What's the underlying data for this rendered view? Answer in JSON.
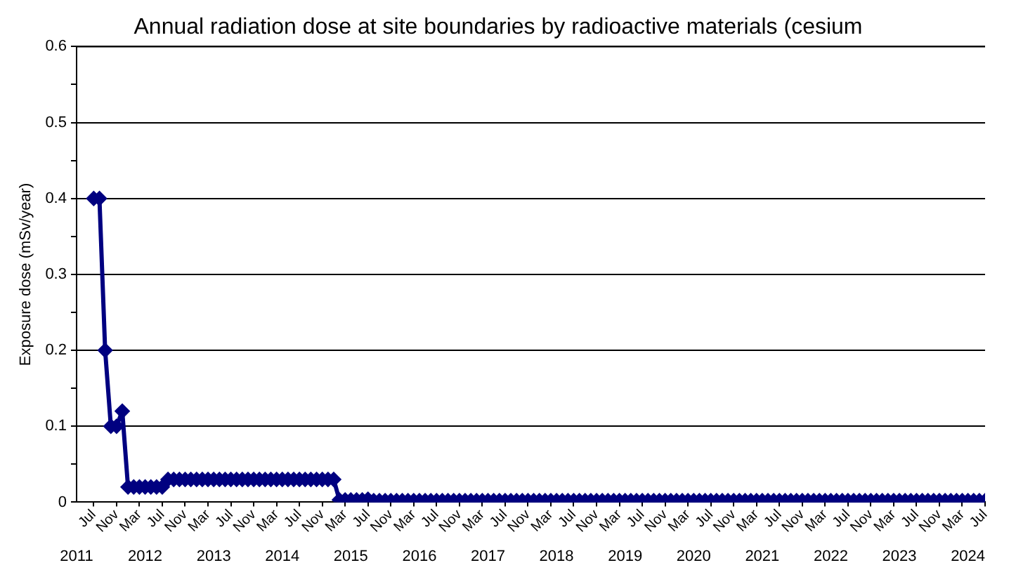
{
  "chart_data": {
    "type": "line",
    "title": "Annual radiation dose at site boundaries by radioactive materials (cesium",
    "ylabel": "Exposure dose (mSv/year)",
    "x": [
      "2011-07",
      "2011-08",
      "2011-09",
      "2011-10",
      "2011-11",
      "2011-12",
      "2012-01",
      "2012-02",
      "2012-03",
      "2012-04",
      "2012-05",
      "2012-06",
      "2012-07",
      "2012-08",
      "2012-09",
      "2012-10",
      "2012-11",
      "2012-12",
      "2013-01",
      "2013-02",
      "2013-03",
      "2013-04",
      "2013-05",
      "2013-06",
      "2013-07",
      "2013-08",
      "2013-09",
      "2013-10",
      "2013-11",
      "2013-12",
      "2014-01",
      "2014-02",
      "2014-03",
      "2014-04",
      "2014-05",
      "2014-06",
      "2014-07",
      "2014-08",
      "2014-09",
      "2014-10",
      "2014-11",
      "2014-12",
      "2015-01",
      "2015-02",
      "2015-03",
      "2015-04",
      "2015-05",
      "2015-06",
      "2015-07",
      "2015-08",
      "2015-09",
      "2015-10",
      "2015-11",
      "2015-12",
      "2016-01",
      "2016-02",
      "2016-03",
      "2016-04",
      "2016-05",
      "2016-06",
      "2016-07",
      "2016-08",
      "2016-09",
      "2016-10",
      "2016-11",
      "2016-12",
      "2017-01",
      "2017-02",
      "2017-03",
      "2017-04",
      "2017-05",
      "2017-06",
      "2017-07",
      "2017-08",
      "2017-09",
      "2017-10",
      "2017-11",
      "2017-12",
      "2018-01",
      "2018-02",
      "2018-03",
      "2018-04",
      "2018-05",
      "2018-06",
      "2018-07",
      "2018-08",
      "2018-09",
      "2018-10",
      "2018-11",
      "2018-12",
      "2019-01",
      "2019-02",
      "2019-03",
      "2019-04",
      "2019-05",
      "2019-06",
      "2019-07",
      "2019-08",
      "2019-09",
      "2019-10",
      "2019-11",
      "2019-12",
      "2020-01",
      "2020-02",
      "2020-03",
      "2020-04",
      "2020-05",
      "2020-06",
      "2020-07",
      "2020-08",
      "2020-09",
      "2020-10",
      "2020-11",
      "2020-12",
      "2021-01",
      "2021-02",
      "2021-03",
      "2021-04",
      "2021-05",
      "2021-06",
      "2021-07",
      "2021-08",
      "2021-09",
      "2021-10",
      "2021-11",
      "2021-12",
      "2022-01",
      "2022-02",
      "2022-03",
      "2022-04",
      "2022-05",
      "2022-06",
      "2022-07",
      "2022-08",
      "2022-09",
      "2022-10",
      "2022-11",
      "2022-12",
      "2023-01",
      "2023-02",
      "2023-03",
      "2023-04",
      "2023-05",
      "2023-06",
      "2023-07",
      "2023-08",
      "2023-09",
      "2023-10",
      "2023-11",
      "2023-12",
      "2024-01",
      "2024-02",
      "2024-03",
      "2024-04",
      "2024-05",
      "2024-06",
      "2024-07"
    ],
    "series": [
      {
        "color": "#000080",
        "values": [
          0.4,
          0.4,
          0.2,
          0.1,
          0.1,
          0.12,
          0.02,
          0.02,
          0.02,
          0.02,
          0.02,
          0.02,
          0.02,
          0.03,
          0.03,
          0.03,
          0.03,
          0.03,
          0.03,
          0.03,
          0.03,
          0.03,
          0.03,
          0.03,
          0.03,
          0.03,
          0.03,
          0.03,
          0.03,
          0.03,
          0.03,
          0.03,
          0.03,
          0.03,
          0.03,
          0.03,
          0.03,
          0.03,
          0.03,
          0.03,
          0.03,
          0.03,
          0.03,
          0.003,
          0.003,
          0.003,
          0.003,
          0.003,
          0.004,
          0.002,
          0.002,
          0.002,
          0.002,
          0.002,
          0.002,
          0.002,
          0.002,
          0.002,
          0.002,
          0.002,
          0.002,
          0.002,
          0.002,
          0.002,
          0.002,
          0.002,
          0.002,
          0.002,
          0.002,
          0.002,
          0.002,
          0.002,
          0.002,
          0.002,
          0.002,
          0.002,
          0.002,
          0.002,
          0.002,
          0.002,
          0.002,
          0.002,
          0.002,
          0.002,
          0.002,
          0.002,
          0.002,
          0.002,
          0.002,
          0.002,
          0.002,
          0.002,
          0.002,
          0.002,
          0.002,
          0.002,
          0.002,
          0.002,
          0.002,
          0.002,
          0.002,
          0.002,
          0.002,
          0.002,
          0.002,
          0.002,
          0.002,
          0.002,
          0.002,
          0.002,
          0.002,
          0.002,
          0.002,
          0.002,
          0.002,
          0.002,
          0.002,
          0.002,
          0.002,
          0.002,
          0.002,
          0.002,
          0.002,
          0.002,
          0.002,
          0.002,
          0.002,
          0.002,
          0.002,
          0.002,
          0.002,
          0.002,
          0.002,
          0.002,
          0.002,
          0.002,
          0.002,
          0.002,
          0.002,
          0.002,
          0.002,
          0.002,
          0.002,
          0.002,
          0.002,
          0.002,
          0.002,
          0.002,
          0.002,
          0.002,
          0.002,
          0.002,
          0.002,
          0.002,
          0.002,
          0.002,
          0.002
        ]
      }
    ],
    "xlim": [
      "2011-04",
      "2024-07"
    ],
    "xticks": [
      {
        "value": "2011-07",
        "label": "Jul"
      },
      {
        "value": "2011-11",
        "label": "Nov"
      },
      {
        "value": "2012-03",
        "label": "Mar"
      },
      {
        "value": "2012-07",
        "label": "Jul"
      },
      {
        "value": "2012-11",
        "label": "Nov"
      },
      {
        "value": "2013-03",
        "label": "Mar"
      },
      {
        "value": "2013-07",
        "label": "Jul"
      },
      {
        "value": "2013-11",
        "label": "Nov"
      },
      {
        "value": "2014-03",
        "label": "Mar"
      },
      {
        "value": "2014-07",
        "label": "Jul"
      },
      {
        "value": "2014-11",
        "label": "Nov"
      },
      {
        "value": "2015-03",
        "label": "Mar"
      },
      {
        "value": "2015-07",
        "label": "Jul"
      },
      {
        "value": "2015-11",
        "label": "Nov"
      },
      {
        "value": "2016-03",
        "label": "Mar"
      },
      {
        "value": "2016-07",
        "label": "Jul"
      },
      {
        "value": "2016-11",
        "label": "Nov"
      },
      {
        "value": "2017-03",
        "label": "Mar"
      },
      {
        "value": "2017-07",
        "label": "Jul"
      },
      {
        "value": "2017-11",
        "label": "Nov"
      },
      {
        "value": "2018-03",
        "label": "Mar"
      },
      {
        "value": "2018-07",
        "label": "Jul"
      },
      {
        "value": "2018-11",
        "label": "Nov"
      },
      {
        "value": "2019-03",
        "label": "Mar"
      },
      {
        "value": "2019-07",
        "label": "Jul"
      },
      {
        "value": "2019-11",
        "label": "Nov"
      },
      {
        "value": "2020-03",
        "label": "Mar"
      },
      {
        "value": "2020-07",
        "label": "Jul"
      },
      {
        "value": "2020-11",
        "label": "Nov"
      },
      {
        "value": "2021-03",
        "label": "Mar"
      },
      {
        "value": "2021-07",
        "label": "Jul"
      },
      {
        "value": "2021-11",
        "label": "Nov"
      },
      {
        "value": "2022-03",
        "label": "Mar"
      },
      {
        "value": "2022-07",
        "label": "Jul"
      },
      {
        "value": "2022-11",
        "label": "Nov"
      },
      {
        "value": "2023-03",
        "label": "Mar"
      },
      {
        "value": "2023-07",
        "label": "Jul"
      },
      {
        "value": "2023-11",
        "label": "Nov"
      },
      {
        "value": "2024-03",
        "label": "Mar"
      },
      {
        "value": "2024-07",
        "label": "Jul"
      }
    ],
    "x2lim": [
      "2011-04",
      "2024-07"
    ],
    "x2ticks": [
      {
        "value": "2011-04",
        "label": "2011"
      },
      {
        "value": "2012-04",
        "label": "2012"
      },
      {
        "value": "2013-04",
        "label": "2013"
      },
      {
        "value": "2014-04",
        "label": "2014"
      },
      {
        "value": "2015-04",
        "label": "2015"
      },
      {
        "value": "2016-04",
        "label": "2016"
      },
      {
        "value": "2017-04",
        "label": "2017"
      },
      {
        "value": "2018-04",
        "label": "2018"
      },
      {
        "value": "2019-04",
        "label": "2019"
      },
      {
        "value": "2020-04",
        "label": "2020"
      },
      {
        "value": "2021-04",
        "label": "2021"
      },
      {
        "value": "2022-04",
        "label": "2022"
      },
      {
        "value": "2023-04",
        "label": "2023"
      },
      {
        "value": "2024-04",
        "label": "2024"
      }
    ],
    "ylim": [
      0,
      0.6
    ],
    "yticks": [
      0,
      {
        "value": 0.05,
        "label": null
      },
      0.1,
      {
        "value": 0.15,
        "label": null
      },
      0.2,
      {
        "value": 0.25,
        "label": null
      },
      0.3,
      {
        "value": 0.35,
        "label": null
      },
      0.4,
      {
        "value": 0.45,
        "label": null
      },
      0.5,
      {
        "value": 0.55,
        "label": null
      },
      0.6
    ],
    "grid": "y",
    "legend": false,
    "marker": "diamond",
    "line_style": "solid"
  }
}
